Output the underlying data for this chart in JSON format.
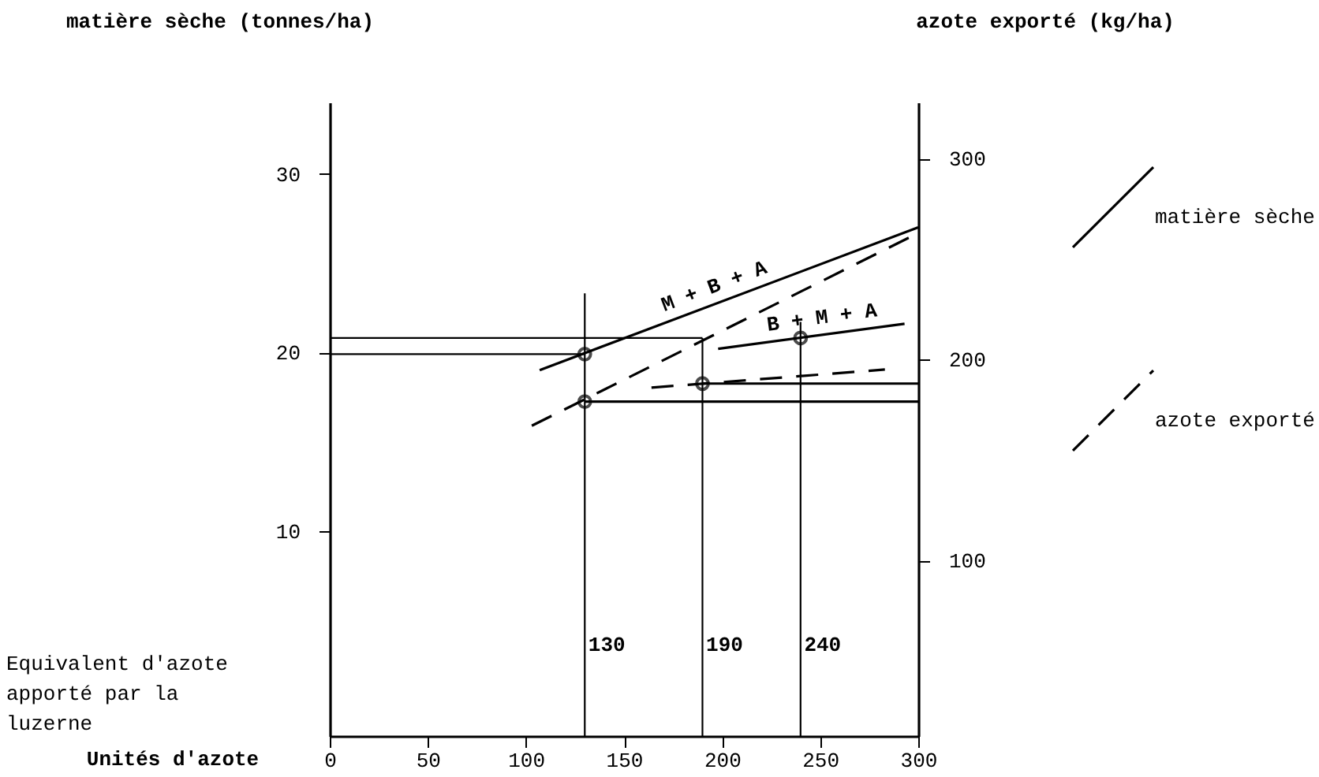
{
  "chart_data": {
    "type": "line",
    "xlabel": "Unités d'azote",
    "ylabel": "matière sèche (tonnes/ha)",
    "y2label": "azote exporté (kg/ha)",
    "xlim": [
      0,
      300
    ],
    "xticks": [
      0,
      50,
      100,
      150,
      200,
      250,
      300
    ],
    "ylim": [
      -1.5,
      34
    ],
    "yticks": [
      10,
      20,
      30
    ],
    "y2lim": [
      12.5,
      328
    ],
    "y2ticks": [
      100,
      200,
      300
    ],
    "legend": "right",
    "series": [
      {
        "name": "matière sèche",
        "axis": "y",
        "line_style": "solid",
        "color": "#000000",
        "x": [
          107,
          300
        ],
        "values": [
          19.0,
          27.0
        ]
      },
      {
        "name": "azote exporté",
        "axis": "y2",
        "line_style": "dashed",
        "color": "#000000",
        "x": [
          103,
          300
        ],
        "values": [
          167,
          263
        ]
      },
      {
        "axis": "y",
        "line_style": "solid",
        "color": "#000000",
        "x": [
          198,
          293
        ],
        "values": [
          20.2,
          21.6
        ]
      },
      {
        "axis": "y2",
        "line_style": "dashed",
        "color": "#000000",
        "x": [
          164,
          283
        ],
        "values": [
          186,
          195
        ]
      },
      {
        "axis": "y",
        "line_style": "solid",
        "color": "#000000",
        "x": [
          0,
          190
        ],
        "values": [
          20.8,
          20.8
        ]
      },
      {
        "axis": "y",
        "line_style": "solid",
        "color": "#000000",
        "x": [
          0,
          130
        ],
        "values": [
          19.9,
          19.9
        ]
      },
      {
        "axis": "y2",
        "line_style": "solid",
        "color": "#000000",
        "x": [
          190,
          300
        ],
        "values": [
          188,
          188
        ]
      },
      {
        "axis": "y2",
        "line_style": "solid",
        "color": "#000000",
        "x": [
          130,
          300
        ],
        "values": [
          179,
          179
        ]
      },
      {
        "axis": "y",
        "line_style": "solid",
        "color": "#000000",
        "x": [
          130,
          130
        ],
        "values": [
          -1.5,
          23.3
        ]
      },
      {
        "axis": "y",
        "line_style": "solid",
        "color": "#000000",
        "x": [
          190,
          190
        ],
        "values": [
          -1.5,
          20.8
        ]
      },
      {
        "axis": "y",
        "line_style": "solid",
        "color": "#000000",
        "x": [
          240,
          240
        ],
        "values": [
          -1.5,
          21.7
        ]
      },
      {
        "type": "scatter",
        "axis": "y",
        "marker": "circle",
        "color": "#000000",
        "x": [
          130,
          240
        ],
        "values": [
          19.9,
          20.8
        ]
      },
      {
        "type": "scatter",
        "axis": "y2",
        "marker": "circle",
        "color": "#000000",
        "x": [
          130,
          190
        ],
        "values": [
          179,
          188
        ]
      }
    ],
    "annotations": [
      {
        "text": "M + B + A",
        "x": 199,
        "y": 22.8
      },
      {
        "text": "B + M + A",
        "x": 252,
        "y": 21.0
      },
      {
        "text": "130",
        "x": 130,
        "y": 3.6
      },
      {
        "text": "190",
        "x": 190,
        "y": 3.6
      },
      {
        "text": "240",
        "x": 240,
        "y": 3.6
      },
      "Equivalent d'azote\napporté par la\nluzerne"
    ]
  }
}
